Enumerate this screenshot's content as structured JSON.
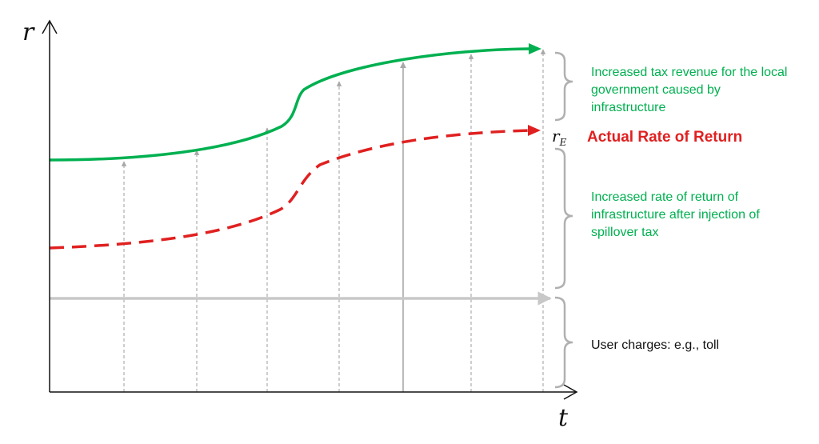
{
  "axes": {
    "y_label": "r",
    "x_label": "t"
  },
  "labels": {
    "tax_revenue": "Increased tax revenue for the local government caused by infrastructure",
    "actual_return": "Actual Rate of Return",
    "spillover": "Increased rate of return of infrastructure after injection of spillover tax",
    "user_charges": "User charges: e.g., toll",
    "r_e_base": "r",
    "r_e_sub": "E"
  },
  "colors": {
    "tax_curve": "#00b050",
    "return_curve": "#e02020",
    "user_charge_line": "#c8c8c8",
    "axis": "#111111",
    "brace": "#b0b0b0",
    "arrows": "#a8a8a8"
  },
  "icons": {
    "brace": "right-curly-brace",
    "arrow": "up-arrow"
  }
}
